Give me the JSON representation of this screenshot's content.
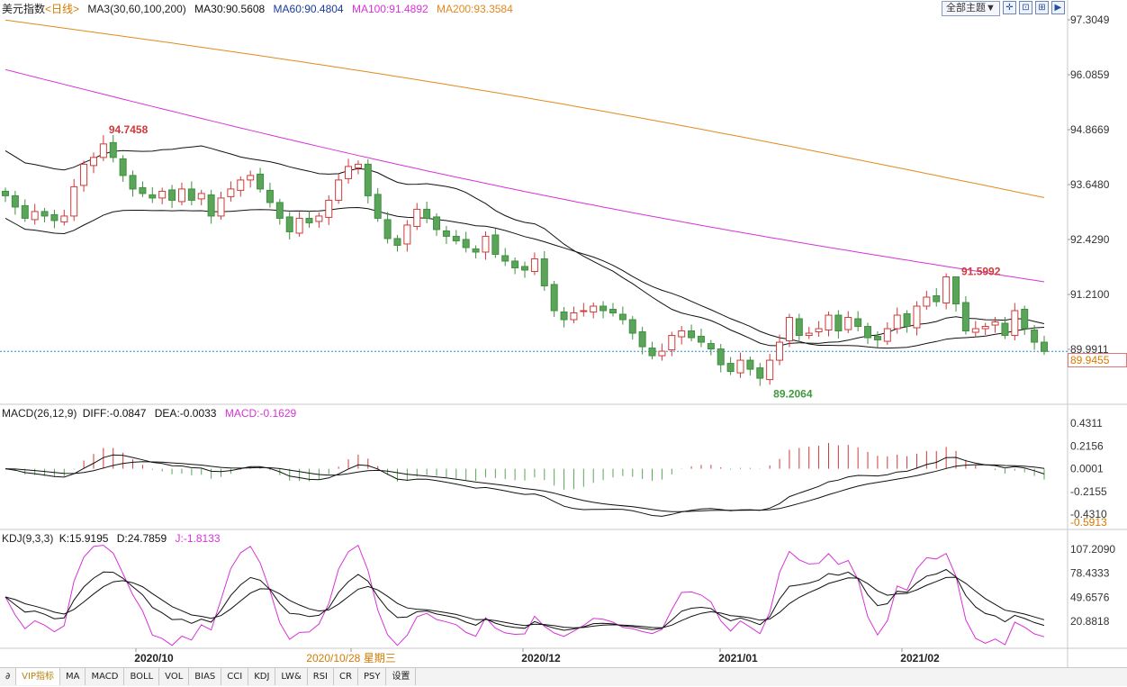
{
  "header": {
    "symbol": "美元指数",
    "period": "<日线>",
    "ma_label": "MA3(30,60,100,200)",
    "ma30": "MA30:90.5608",
    "ma60": "MA60:90.4804",
    "ma100": "MA100:91.4892",
    "ma200": "MA200:93.3584"
  },
  "toolbar": {
    "theme_label": "全部主题▼",
    "icons": [
      "crosshair-icon",
      "split-icon",
      "layout-icon",
      "play-icon"
    ],
    "icon_glyphs": [
      "✛",
      "⊡",
      "⊞",
      "▶"
    ]
  },
  "macd_header": {
    "label": "MACD(26,12,9)",
    "diff": "DIFF:-0.0847",
    "dea": "DEA:-0.0033",
    "macd": "MACD:-0.1629"
  },
  "kdj_header": {
    "label": "KDJ(9,3,3)",
    "k": "K:15.9195",
    "d": "D:24.7859",
    "j": "J:-1.8133"
  },
  "price_axis_labels": [
    "97.3049",
    "96.0859",
    "94.8669",
    "93.6480",
    "92.4290",
    "91.2100",
    "89.9911"
  ],
  "current_price_label": "89.9455",
  "macd_axis_labels": [
    "0.4311",
    "0.2156",
    "0.0001",
    "-0.2155",
    "-0.4310",
    "-0.5913"
  ],
  "kdj_axis_labels": [
    "107.2090",
    "78.4333",
    "49.6576",
    "20.8818"
  ],
  "date_labels": [
    "2020/10",
    "2020/10/28 星期三",
    "2020/12",
    "2021/01",
    "2021/02"
  ],
  "annotations": {
    "high": "94.7458",
    "low": "89.2064",
    "recent_high": "91.5992"
  },
  "bottom_tabs": [
    "∂",
    "VIP指标",
    "MA",
    "MACD",
    "BOLL",
    "VOL",
    "BIAS",
    "CCI",
    "KDJ",
    "LW&",
    "RSI",
    "CR",
    "PSY",
    "设置"
  ],
  "colors": {
    "up": "#d03a3a",
    "down": "#5aa55a",
    "ma30": "#111111",
    "ma60": "#111111",
    "ma100": "#d633d6",
    "ma200": "#e08a1e",
    "accent": "#d67a00"
  },
  "chart_data": [
    {
      "type": "candlestick",
      "title": "美元指数 日线",
      "y_axis_ticks": [
        97.3049,
        96.0859,
        94.8669,
        93.648,
        92.429,
        91.21,
        89.9911
      ],
      "ylim": [
        88.7,
        97.5
      ],
      "last_price": 89.9455,
      "x_labels": [
        "2020/10",
        "2020/10/28 星期三",
        "2020/12",
        "2021/01",
        "2021/02"
      ],
      "closes": [
        93.4,
        93.15,
        92.9,
        93.05,
        92.95,
        92.85,
        92.95,
        93.6,
        94.1,
        94.25,
        94.55,
        94.25,
        93.85,
        93.55,
        93.45,
        93.35,
        93.5,
        93.3,
        93.55,
        93.3,
        93.45,
        92.95,
        93.35,
        93.55,
        93.75,
        93.85,
        93.55,
        93.25,
        92.9,
        92.6,
        92.9,
        92.8,
        92.95,
        93.3,
        93.75,
        94.05,
        94.1,
        93.4,
        92.9,
        92.45,
        92.3,
        92.75,
        93.1,
        92.9,
        92.65,
        92.5,
        92.4,
        92.25,
        92.15,
        92.5,
        92.1,
        91.95,
        91.8,
        91.75,
        92.0,
        91.4,
        90.85,
        90.65,
        90.8,
        90.85,
        90.95,
        90.85,
        90.8,
        90.65,
        90.35,
        90.05,
        89.85,
        89.95,
        90.3,
        90.4,
        90.25,
        90.15,
        90.0,
        89.65,
        89.5,
        89.75,
        89.55,
        89.35,
        89.75,
        90.15,
        90.7,
        90.3,
        90.35,
        90.45,
        90.75,
        90.4,
        90.7,
        90.5,
        90.25,
        90.2,
        90.45,
        90.75,
        90.5,
        90.95,
        91.15,
        91.05,
        91.6,
        91.0,
        90.4,
        90.45,
        90.5,
        90.6,
        90.3,
        90.85,
        90.45,
        90.15,
        89.9455
      ],
      "high": {
        "date_index": 10,
        "value": 94.7458
      },
      "low": {
        "date_index": 78,
        "value": 89.2064
      },
      "recent_high": {
        "date_index": 97,
        "value": 91.5992
      },
      "series": [
        {
          "name": "MA30",
          "last": 90.5608,
          "start": 94.4,
          "end": 90.56
        },
        {
          "name": "MA60",
          "last": 90.4804,
          "start": 92.9,
          "end": 90.48
        },
        {
          "name": "MA100",
          "last": 91.4892,
          "start": 96.2,
          "end": 91.49
        },
        {
          "name": "MA200",
          "last": 93.3584,
          "start": 97.3,
          "end": 93.36
        }
      ]
    },
    {
      "type": "bar",
      "title": "MACD(26,12,9)",
      "y_axis_ticks": [
        0.4311,
        0.2156,
        0.0001,
        -0.2155,
        -0.431,
        -0.5913
      ],
      "ylim": [
        -0.5913,
        0.55
      ],
      "series": [
        {
          "name": "DIFF",
          "last": -0.0847
        },
        {
          "name": "DEA",
          "last": -0.0033
        },
        {
          "name": "MACD",
          "last": -0.1629
        }
      ]
    },
    {
      "type": "line",
      "title": "KDJ(9,3,3)",
      "y_axis_ticks": [
        107.209,
        78.4333,
        49.6576,
        20.8818
      ],
      "ylim": [
        0,
        115
      ],
      "series": [
        {
          "name": "K",
          "last": 15.9195
        },
        {
          "name": "D",
          "last": 24.7859
        },
        {
          "name": "J",
          "last": -1.8133
        }
      ]
    }
  ]
}
